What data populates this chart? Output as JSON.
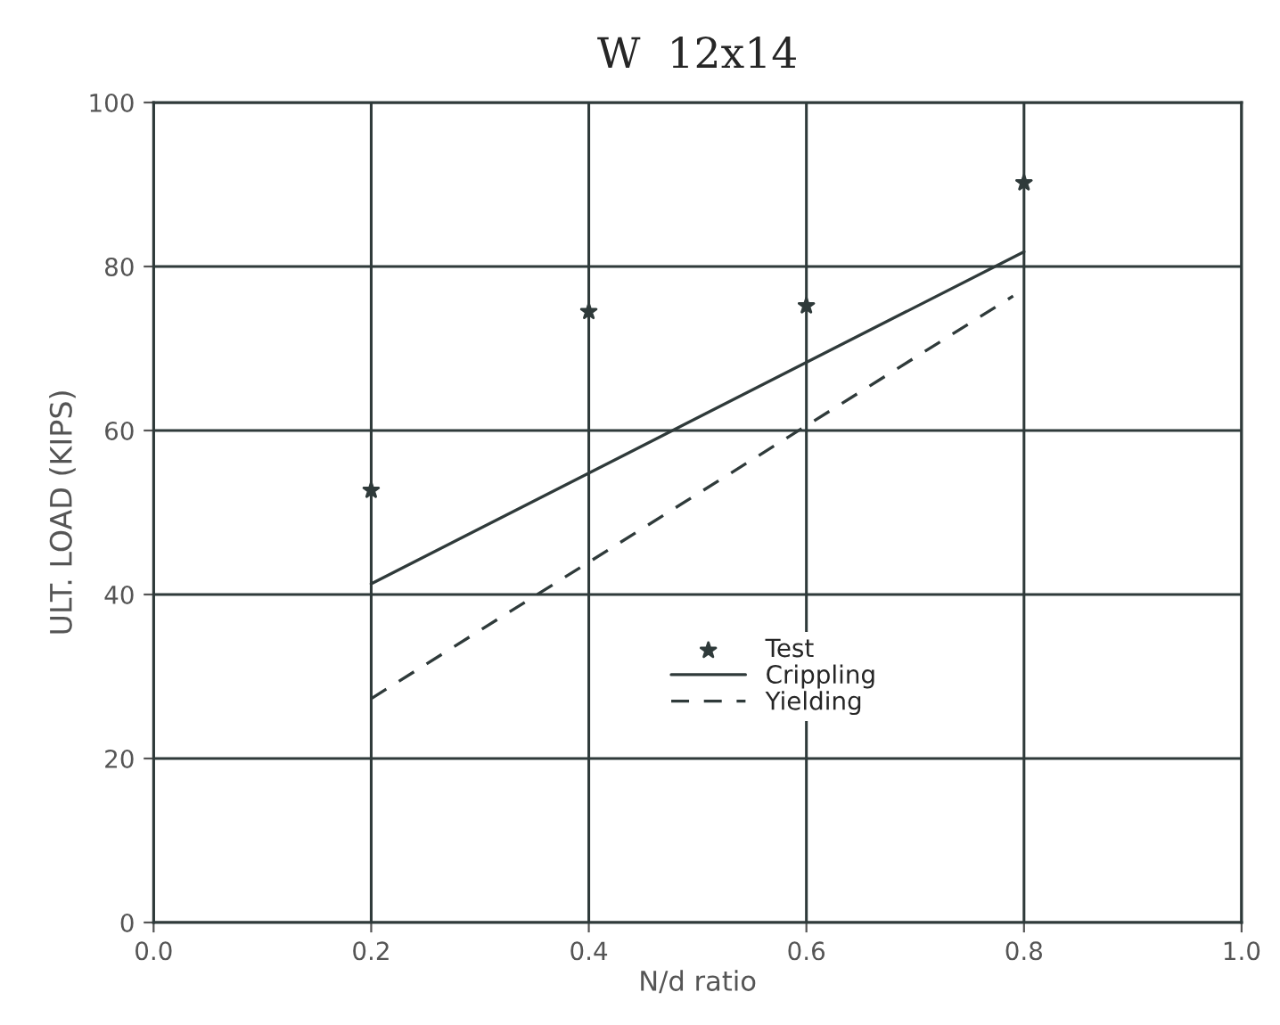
{
  "chart_data": {
    "type": "line",
    "title": "W  12x14",
    "xlabel": "N/d ratio",
    "ylabel": "ULT. LOAD (KIPS)",
    "xlim": [
      0.0,
      1.0
    ],
    "xticks": [
      {
        "value": 0.0,
        "label": "0.0"
      },
      0.2,
      0.4,
      0.6,
      0.8,
      {
        "value": 1.0,
        "label": "1.0"
      }
    ],
    "ylim": [
      0,
      100
    ],
    "yticks": [
      0,
      20,
      40,
      60,
      80,
      100
    ],
    "grid": true,
    "legend": "center",
    "series": [
      {
        "name": "Test",
        "type": "scatter",
        "marker": "star",
        "color": "#2f3a3a",
        "x": [
          0.2,
          0.4,
          0.6,
          0.8
        ],
        "values": [
          52.7,
          74.5,
          75.2,
          90.2
        ]
      },
      {
        "name": "Crippling",
        "line_style": "solid",
        "color": "#2f3a3a",
        "x": [
          0.2,
          0.8
        ],
        "values": [
          41.3,
          81.8
        ]
      },
      {
        "name": "Yielding",
        "line_style": "dashed",
        "color": "#2f3a3a",
        "x": [
          0.2,
          0.79
        ],
        "values": [
          27.3,
          76.4
        ]
      }
    ]
  }
}
